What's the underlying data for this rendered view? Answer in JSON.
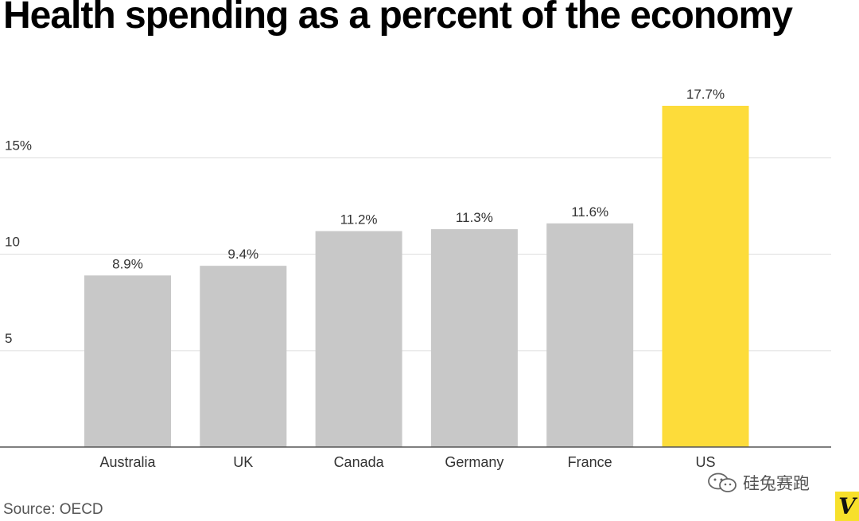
{
  "title": "Health spending as a percent of the economy",
  "source": "Source: OECD",
  "watermark": {
    "text": "硅兔赛跑",
    "icon": "wechat-icon"
  },
  "logo": {
    "text": "V",
    "color": "#f7e02b"
  },
  "chart_data": {
    "type": "bar",
    "title": "Health spending as a percent of the economy",
    "xlabel": "",
    "ylabel": "",
    "categories": [
      "Australia",
      "UK",
      "Canada",
      "Germany",
      "France",
      "US"
    ],
    "values": [
      8.9,
      9.4,
      11.2,
      11.3,
      11.6,
      17.7
    ],
    "data_labels": [
      "8.9%",
      "9.4%",
      "11.2%",
      "11.3%",
      "11.6%",
      "17.7%"
    ],
    "ylim": [
      0,
      17.7
    ],
    "yticks": [
      {
        "value": 5,
        "label": "5"
      },
      {
        "value": 10,
        "label": "10"
      },
      {
        "value": 15,
        "label": "15%"
      }
    ],
    "grid": true,
    "colors": {
      "default": "#c8c8c8",
      "highlight": "#fddc3a",
      "highlight_category": "US",
      "grid": "#dddddd",
      "axis": "#555555"
    },
    "legend": "none"
  }
}
